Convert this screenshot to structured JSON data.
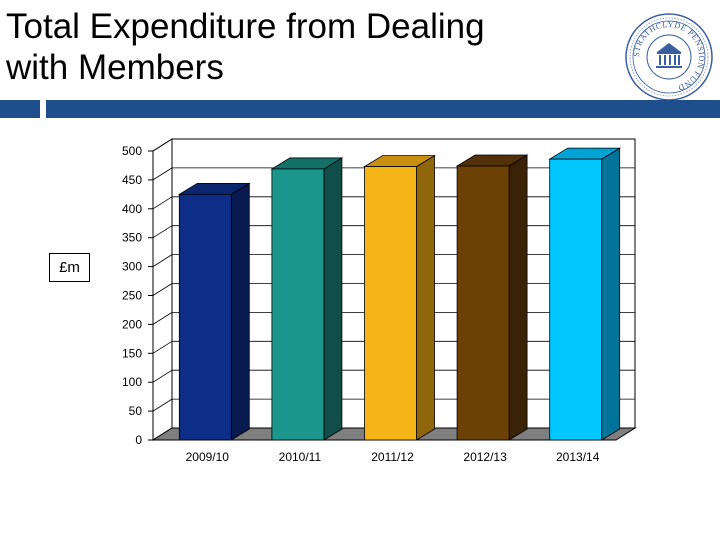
{
  "title_lines": [
    "Total Expenditure from Dealing",
    "with Members"
  ],
  "logo_text": "STRATHCLYDE PENSION FUND",
  "colors": {
    "rule": "#1f4e8c",
    "floor": "#7f7f7f",
    "bar_front": [
      "#0d2d87",
      "#1b968d",
      "#f5b417",
      "#6b4106",
      "#00c7ff"
    ],
    "bar_top": [
      "#0b2670",
      "#137068",
      "#c88f10",
      "#51300a",
      "#00a3d6"
    ],
    "bar_side": [
      "#081a4f",
      "#0f4e49",
      "#8f660b",
      "#3a2206",
      "#007399"
    ]
  },
  "chart_data": {
    "type": "bar",
    "categories": [
      "2009/10",
      "2010/11",
      "2011/12",
      "2012/13",
      "2013/14"
    ],
    "values": [
      425,
      469,
      473,
      474,
      486
    ],
    "title": "Total Expenditure from Dealing with Members",
    "xlabel": "",
    "ylabel": "£m",
    "ylim": [
      0,
      500
    ],
    "yticks": [
      0,
      50,
      100,
      150,
      200,
      250,
      300,
      350,
      400,
      450,
      500
    ],
    "grid": true,
    "legend": "none",
    "style": "3d"
  }
}
